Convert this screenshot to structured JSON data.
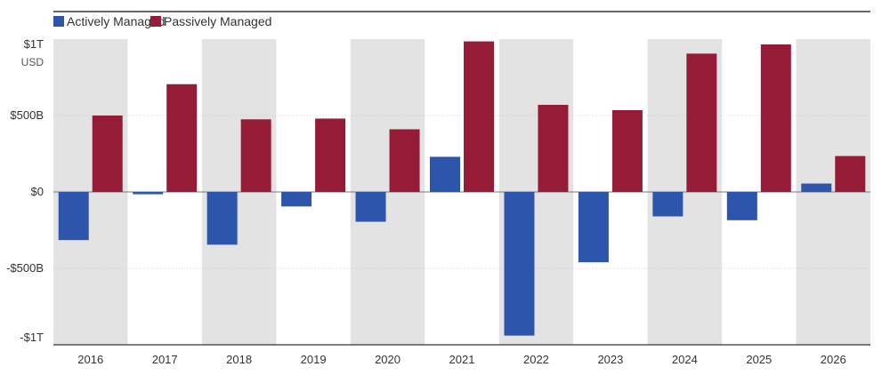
{
  "chart_data": {
    "type": "bar",
    "title": "",
    "xlabel": "",
    "ylabel": "USD",
    "categories": [
      "2016",
      "2017",
      "2018",
      "2019",
      "2020",
      "2021",
      "2022",
      "2023",
      "2024",
      "2025",
      "2026"
    ],
    "series": [
      {
        "name": "Actively Managed",
        "color": "#2d55ab",
        "values": [
          -315,
          -15,
          -345,
          -95,
          -195,
          230,
          -940,
          -460,
          -160,
          -185,
          55
        ]
      },
      {
        "name": "Passively Managed",
        "color": "#961b36",
        "values": [
          500,
          705,
          475,
          480,
          410,
          985,
          570,
          535,
          905,
          965,
          235
        ]
      }
    ],
    "ylim": [
      -1000,
      1000
    ],
    "yticks": [
      {
        "value": 1000,
        "label": "$1T"
      },
      {
        "value": 500,
        "label": "$500B"
      },
      {
        "value": 0,
        "label": "$0"
      },
      {
        "value": -500,
        "label": "-$500B"
      },
      {
        "value": -1000,
        "label": "-$1T"
      }
    ],
    "y_unit": "USD",
    "legend_position": "top-left",
    "band_color": "#e3e3e3",
    "grid_color": "#c8c8c8",
    "grid": true
  }
}
